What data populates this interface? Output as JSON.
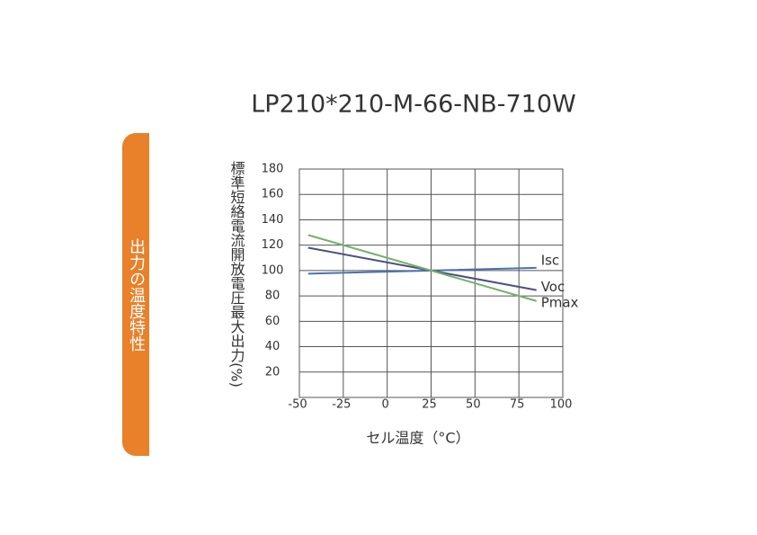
{
  "chart_data": {
    "type": "line",
    "title": "LP210*210-M-66-NB-710W",
    "side_label": "出力の温度特性",
    "y_label": "標準短絡電流開放電圧最大出力(%)",
    "x_label": "セル温度（°C）",
    "x": [
      -45,
      25,
      85
    ],
    "series": [
      {
        "name": "Isc",
        "color": "#4a72b0",
        "values": [
          97.5,
          100,
          102.1
        ]
      },
      {
        "name": "Voc",
        "color": "#4b4f85",
        "values": [
          118,
          100,
          84.6
        ]
      },
      {
        "name": "Pmax",
        "color": "#78b068",
        "values": [
          128,
          100,
          76
        ]
      }
    ],
    "xlim": [
      -50,
      100
    ],
    "xticks": [
      -50,
      -25,
      0,
      25,
      50,
      75,
      100
    ],
    "ylim": [
      0,
      180
    ],
    "yticks": [
      20,
      40,
      60,
      80,
      100,
      120,
      140,
      160,
      180
    ],
    "grid": true
  }
}
